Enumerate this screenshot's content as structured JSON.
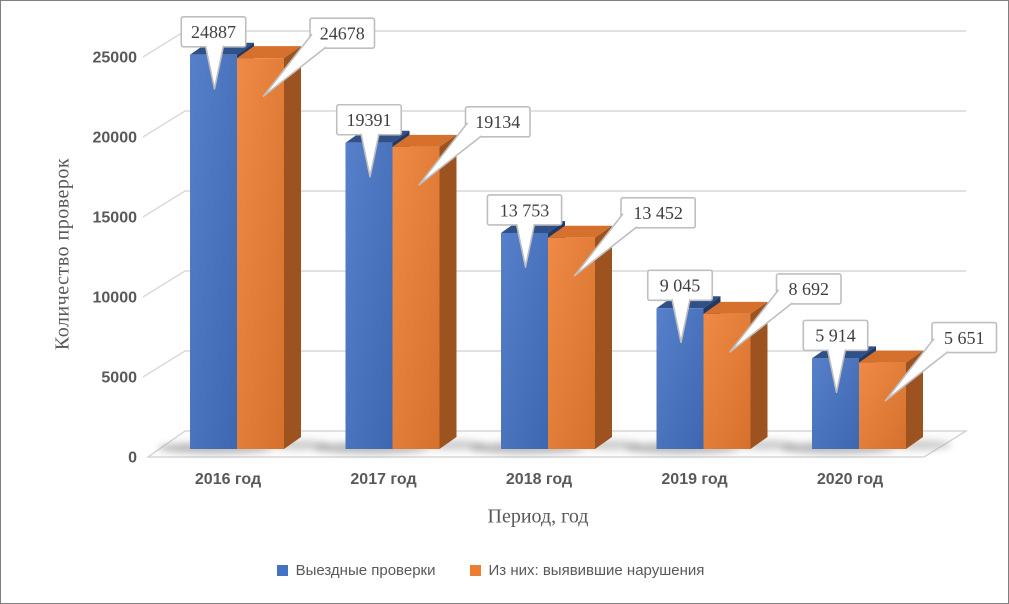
{
  "window": {
    "background": "#FFFFFF",
    "border_color": "#7F7F7F"
  },
  "chart_data": {
    "type": "bar",
    "style": "3d-clustered-column",
    "title": "",
    "categories": [
      "2016 год",
      "2017 год",
      "2018 год",
      "2019 год",
      "2020 год"
    ],
    "series": [
      {
        "name": "Выездные проверки",
        "color": "#4472C4",
        "values": [
          24887,
          19391,
          13753,
          9045,
          5914
        ],
        "data_labels": [
          "24887",
          "19391",
          "13 753",
          "9 045",
          "5 914"
        ]
      },
      {
        "name": "Из них: выявившие нарушения",
        "color": "#ED7D31",
        "values": [
          24678,
          19134,
          13452,
          8692,
          5651
        ],
        "data_labels": [
          "24678",
          "19134",
          "13 452",
          "8 692",
          "5 651"
        ]
      }
    ],
    "xlabel": "Период, год",
    "ylabel": "Количество проверок",
    "ylim": [
      0,
      25000
    ],
    "yticks": [
      0,
      5000,
      10000,
      15000,
      20000,
      25000
    ],
    "ytick_labels": [
      "0",
      "5000",
      "10000",
      "15000",
      "20000",
      "25000"
    ],
    "grid": true,
    "legend_position": "bottom",
    "data_label_style": "callout-boxes-with-pointers"
  },
  "colors": {
    "gridline": "#D9D9D9",
    "floor_fill": "#FCFCFC",
    "floor_stroke": "#CFCFCF",
    "tick_text": "#595959",
    "category_text": "#595959",
    "axis_title_text": "#595959",
    "legend_text": "#595959",
    "callout_border": "#BFBFBF",
    "callout_fill": "#FFFFFF",
    "callout_text": "#3F3F3F"
  }
}
